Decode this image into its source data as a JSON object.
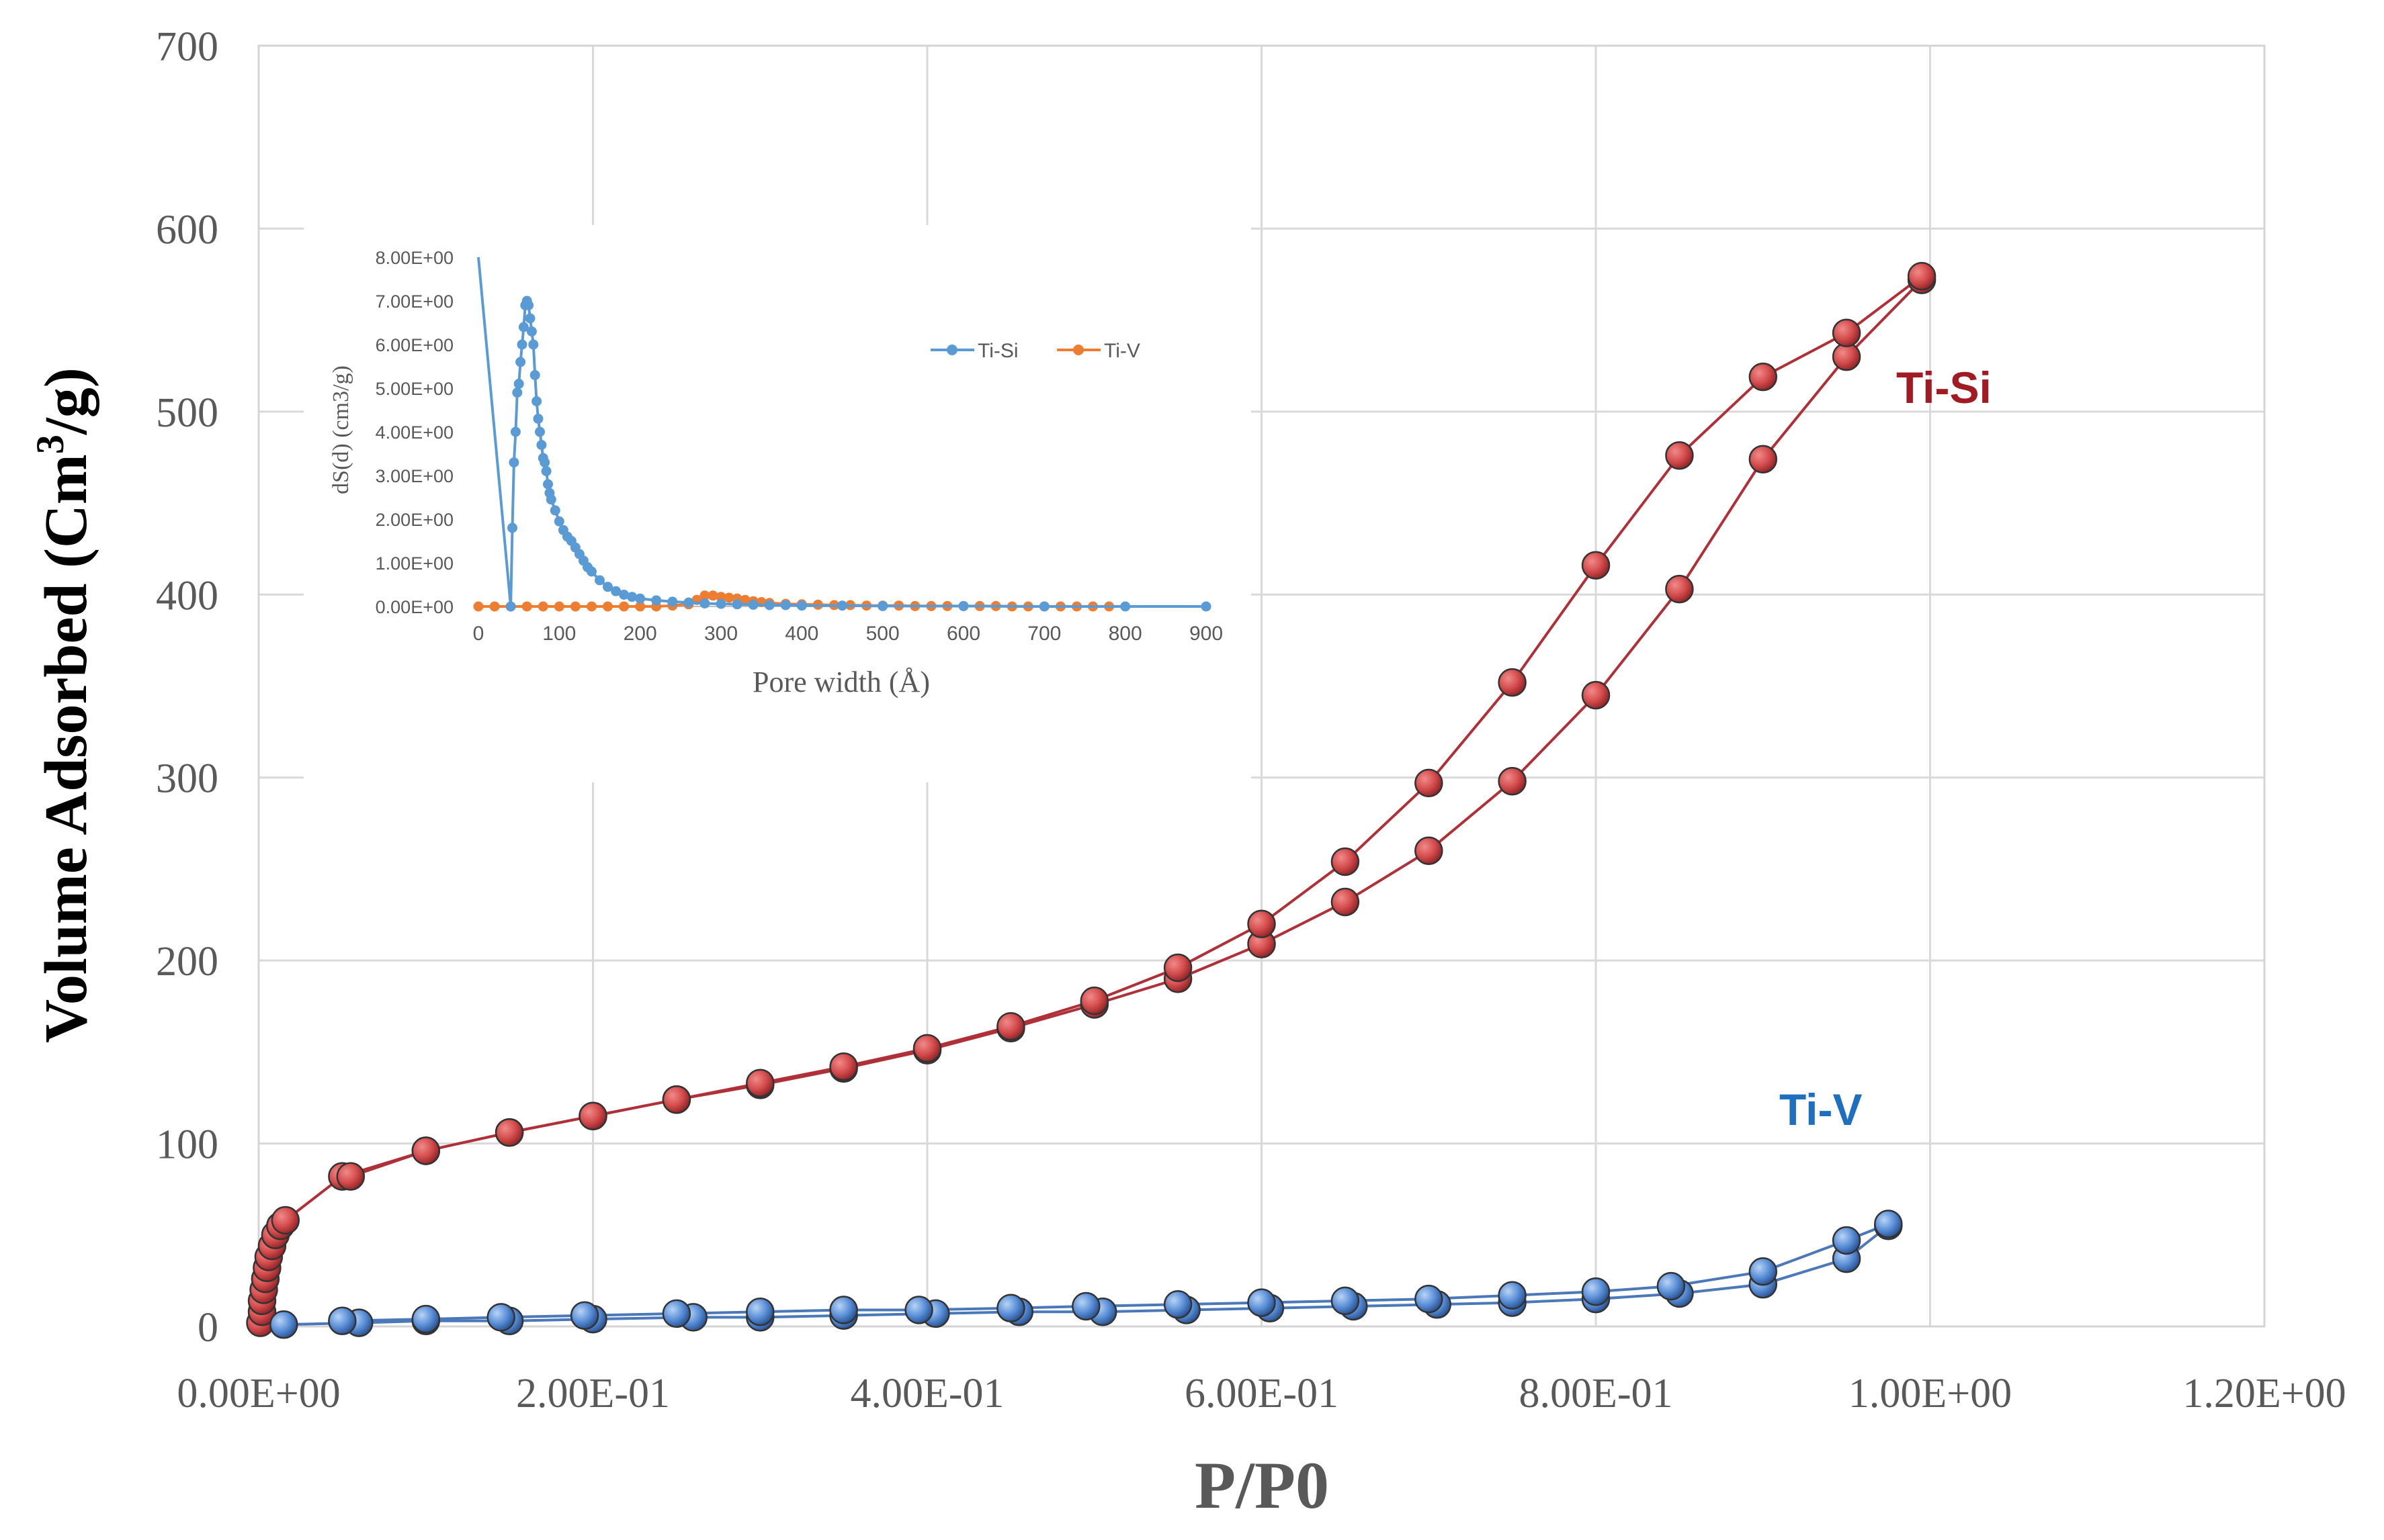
{
  "chart_data": [
    {
      "type": "scatter",
      "id": "main",
      "title": "",
      "xlabel": "P/P0",
      "ylabel_main": "Volume Adsorbed (Cm",
      "ylabel_sup": "3",
      "ylabel_end": "/g)",
      "xlim": [
        0,
        1.2
      ],
      "ylim": [
        0,
        700
      ],
      "grid": true,
      "xticks": [
        0,
        0.2,
        0.4,
        0.6,
        0.8,
        1.0,
        1.2
      ],
      "xtick_labels": [
        "0.00E+00",
        "2.00E-01",
        "4.00E-01",
        "6.00E-01",
        "8.00E-01",
        "1.00E+00",
        "1.20E+00"
      ],
      "yticks": [
        0,
        100,
        200,
        300,
        400,
        500,
        600,
        700
      ],
      "ytick_labels": [
        "0",
        "100",
        "200",
        "300",
        "400",
        "500",
        "600",
        "700"
      ],
      "series": [
        {
          "name": "Ti-Si",
          "label": "Ti-Si",
          "color": "#b03038",
          "marker_fill": "#d44c4c",
          "label_color": "#a01c22",
          "adsorption": [
            [
              0.001,
              2
            ],
            [
              0.002,
              8
            ],
            [
              0.002,
              14
            ],
            [
              0.003,
              20
            ],
            [
              0.004,
              26
            ],
            [
              0.005,
              32
            ],
            [
              0.006,
              38
            ],
            [
              0.008,
              44
            ],
            [
              0.01,
              50
            ],
            [
              0.013,
              55
            ],
            [
              0.016,
              58
            ],
            [
              0.05,
              82
            ],
            [
              0.1,
              96
            ],
            [
              0.15,
              106
            ],
            [
              0.2,
              115
            ],
            [
              0.25,
              124
            ],
            [
              0.3,
              132
            ],
            [
              0.35,
              141
            ],
            [
              0.4,
              151
            ],
            [
              0.45,
              163
            ],
            [
              0.5,
              176
            ],
            [
              0.55,
              190
            ],
            [
              0.6,
              209
            ],
            [
              0.65,
              232
            ],
            [
              0.7,
              260
            ],
            [
              0.75,
              298
            ],
            [
              0.8,
              345
            ],
            [
              0.85,
              403
            ],
            [
              0.9,
              474
            ],
            [
              0.95,
              530
            ],
            [
              0.995,
              572
            ]
          ],
          "desorption": [
            [
              0.995,
              574
            ],
            [
              0.95,
              543
            ],
            [
              0.9,
              519
            ],
            [
              0.85,
              476
            ],
            [
              0.8,
              416
            ],
            [
              0.75,
              352
            ],
            [
              0.7,
              297
            ],
            [
              0.65,
              254
            ],
            [
              0.6,
              220
            ],
            [
              0.55,
              196
            ],
            [
              0.5,
              178
            ],
            [
              0.45,
              164
            ],
            [
              0.4,
              152
            ],
            [
              0.35,
              142
            ],
            [
              0.3,
              133
            ],
            [
              0.25,
              124
            ],
            [
              0.2,
              115
            ],
            [
              0.15,
              106
            ],
            [
              0.1,
              96
            ],
            [
              0.055,
              82
            ]
          ]
        },
        {
          "name": "Ti-V",
          "label": "Ti-V",
          "color": "#4a78b8",
          "marker_fill": "#5a8fd8",
          "label_color": "#1f6fc0",
          "adsorption": [
            [
              0.015,
              1
            ],
            [
              0.06,
              2
            ],
            [
              0.1,
              3
            ],
            [
              0.15,
              3
            ],
            [
              0.2,
              4
            ],
            [
              0.26,
              5
            ],
            [
              0.3,
              5
            ],
            [
              0.35,
              6
            ],
            [
              0.405,
              7
            ],
            [
              0.455,
              8
            ],
            [
              0.505,
              8
            ],
            [
              0.555,
              9
            ],
            [
              0.605,
              10
            ],
            [
              0.655,
              11
            ],
            [
              0.705,
              12
            ],
            [
              0.75,
              13
            ],
            [
              0.8,
              15
            ],
            [
              0.85,
              18
            ],
            [
              0.9,
              23
            ],
            [
              0.95,
              37
            ],
            [
              0.975,
              55
            ]
          ],
          "desorption": [
            [
              0.975,
              56
            ],
            [
              0.95,
              47
            ],
            [
              0.9,
              30
            ],
            [
              0.845,
              22
            ],
            [
              0.8,
              19
            ],
            [
              0.75,
              17
            ],
            [
              0.7,
              15
            ],
            [
              0.65,
              14
            ],
            [
              0.6,
              13
            ],
            [
              0.55,
              12
            ],
            [
              0.495,
              11
            ],
            [
              0.45,
              10
            ],
            [
              0.395,
              9
            ],
            [
              0.35,
              9
            ],
            [
              0.3,
              8
            ],
            [
              0.25,
              7
            ],
            [
              0.195,
              6
            ],
            [
              0.145,
              5
            ],
            [
              0.1,
              4
            ],
            [
              0.05,
              3
            ]
          ]
        }
      ]
    },
    {
      "type": "line",
      "id": "inset",
      "title": "",
      "xlabel": "Pore width (Å)",
      "ylabel": "dS(d) (cm3/g)",
      "xlim": [
        0,
        900
      ],
      "ylim": [
        0,
        8
      ],
      "grid": false,
      "legend_position": "top-right",
      "xticks": [
        0,
        100,
        200,
        300,
        400,
        500,
        600,
        700,
        800,
        900
      ],
      "xtick_labels": [
        "0",
        "100",
        "200",
        "300",
        "400",
        "500",
        "600",
        "700",
        "800",
        "900"
      ],
      "yticks": [
        0,
        1,
        2,
        3,
        4,
        5,
        6,
        7,
        8
      ],
      "ytick_labels": [
        "0.00E+00",
        "1.00E+00",
        "2.00E+00",
        "3.00E+00",
        "4.00E+00",
        "5.00E+00",
        "6.00E+00",
        "7.00E+00",
        "8.00E+00"
      ],
      "series": [
        {
          "name": "Ti-Si",
          "color": "#5b9bd5",
          "x": [
            0,
            40,
            42,
            44,
            46,
            48,
            50,
            52,
            54,
            56,
            58,
            60,
            62,
            64,
            66,
            68,
            70,
            72,
            74,
            76,
            78,
            80,
            82,
            84,
            86,
            88,
            90,
            95,
            100,
            105,
            110,
            115,
            120,
            125,
            130,
            135,
            140,
            150,
            160,
            170,
            180,
            190,
            200,
            220,
            240,
            260,
            280,
            300,
            320,
            340,
            360,
            380,
            400,
            450,
            500,
            600,
            700,
            800,
            900
          ],
          "y": [
            8.0,
            0.0,
            1.8,
            3.3,
            4.0,
            4.9,
            5.1,
            5.6,
            6.0,
            6.4,
            6.9,
            7.0,
            6.9,
            6.6,
            6.3,
            6.0,
            5.3,
            4.7,
            4.3,
            4.0,
            3.7,
            3.4,
            3.3,
            3.1,
            2.8,
            2.6,
            2.45,
            2.2,
            1.95,
            1.75,
            1.6,
            1.5,
            1.35,
            1.2,
            1.05,
            0.9,
            0.8,
            0.6,
            0.45,
            0.35,
            0.27,
            0.22,
            0.18,
            0.14,
            0.11,
            0.09,
            0.07,
            0.06,
            0.05,
            0.04,
            0.03,
            0.03,
            0.02,
            0.02,
            0.01,
            0.01,
            0.0,
            0.0,
            0.0
          ]
        },
        {
          "name": "Ti-V",
          "color": "#ed7d31",
          "x": [
            0,
            20,
            40,
            60,
            80,
            100,
            120,
            140,
            160,
            180,
            200,
            220,
            240,
            260,
            270,
            280,
            290,
            300,
            310,
            320,
            330,
            340,
            350,
            360,
            380,
            400,
            420,
            440,
            460,
            480,
            500,
            520,
            540,
            560,
            580,
            600,
            620,
            640,
            660,
            680,
            700,
            720,
            740,
            760,
            780
          ],
          "y": [
            0.0,
            0.0,
            0.0,
            0.0,
            0.0,
            0.0,
            0.0,
            0.0,
            0.0,
            0.0,
            0.0,
            0.0,
            0.02,
            0.05,
            0.15,
            0.25,
            0.25,
            0.22,
            0.2,
            0.18,
            0.15,
            0.12,
            0.1,
            0.08,
            0.06,
            0.05,
            0.04,
            0.03,
            0.03,
            0.02,
            0.02,
            0.02,
            0.01,
            0.01,
            0.01,
            0.01,
            0.01,
            0.01,
            0.0,
            0.0,
            0.0,
            0.0,
            0.0,
            0.0,
            0.0
          ]
        }
      ]
    }
  ]
}
